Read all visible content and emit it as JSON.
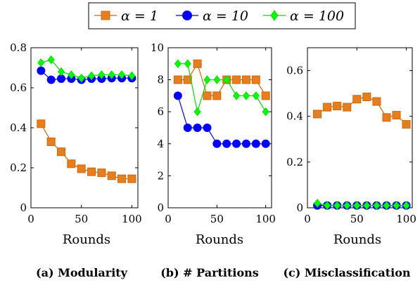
{
  "legend": {
    "entries": [
      {
        "label": "α = 1",
        "color": "#d2650d",
        "fill": "#e57f1e",
        "marker": "square"
      },
      {
        "label": "α = 10",
        "color": "#0000ff",
        "fill": "#0000ff",
        "marker": "circle"
      },
      {
        "label": "α = 100",
        "color": "#00e000",
        "fill": "#00ff00",
        "marker": "diamond"
      }
    ]
  },
  "chart_data": [
    {
      "type": "line",
      "caption": "(a) Modularity",
      "xlabel": "Rounds",
      "ylabel": "",
      "xlim": [
        0,
        106
      ],
      "ylim": [
        0,
        0.8
      ],
      "xticks": [
        0,
        50,
        100
      ],
      "yticks": [
        0,
        0.2,
        0.4,
        0.6,
        0.8
      ],
      "yticklabels": [
        "0",
        "0.2",
        "0.4",
        "0.6",
        "0.8"
      ],
      "x": [
        10,
        20,
        30,
        40,
        50,
        60,
        70,
        80,
        90,
        100
      ],
      "series": [
        {
          "name": "α = 1",
          "values": [
            0.42,
            0.33,
            0.28,
            0.22,
            0.195,
            0.18,
            0.175,
            0.16,
            0.145,
            0.145
          ]
        },
        {
          "name": "α = 10",
          "values": [
            0.685,
            0.64,
            0.645,
            0.645,
            0.64,
            0.645,
            0.645,
            0.648,
            0.648,
            0.648
          ]
        },
        {
          "name": "α = 100",
          "values": [
            0.725,
            0.74,
            0.68,
            0.665,
            0.648,
            0.66,
            0.665,
            0.665,
            0.665,
            0.66
          ]
        }
      ]
    },
    {
      "type": "line",
      "caption": "(b) # Partitions",
      "xlabel": "Rounds",
      "ylabel": "",
      "xlim": [
        0,
        106
      ],
      "ylim": [
        0,
        10
      ],
      "xticks": [
        0,
        50,
        100
      ],
      "yticks": [
        0,
        2,
        4,
        6,
        8,
        10
      ],
      "yticklabels": [
        "0",
        "2",
        "4",
        "6",
        "8",
        "10"
      ],
      "x": [
        10,
        20,
        30,
        40,
        50,
        60,
        70,
        80,
        90,
        100
      ],
      "series": [
        {
          "name": "α = 1",
          "values": [
            8,
            8,
            9,
            7,
            7,
            8,
            8,
            8,
            8,
            7
          ]
        },
        {
          "name": "α = 10",
          "values": [
            7,
            5,
            5,
            5,
            4,
            4,
            4,
            4,
            4,
            4
          ]
        },
        {
          "name": "α = 100",
          "values": [
            9,
            9,
            6,
            8,
            8,
            8,
            7,
            7,
            7,
            6
          ]
        }
      ]
    },
    {
      "type": "line",
      "caption": "(c) Misclassification",
      "xlabel": "Rounds",
      "ylabel": "",
      "xlim": [
        0,
        106
      ],
      "ylim": [
        0,
        0.7
      ],
      "xticks": [
        0,
        50,
        100
      ],
      "yticks": [
        0,
        0.2,
        0.4,
        0.6
      ],
      "yticklabels": [
        "0",
        "0.2",
        "0.4",
        "0.6"
      ],
      "x": [
        10,
        20,
        30,
        40,
        50,
        60,
        70,
        80,
        90,
        100
      ],
      "series": [
        {
          "name": "α = 1",
          "values": [
            0.41,
            0.44,
            0.445,
            0.44,
            0.475,
            0.485,
            0.465,
            0.395,
            0.405,
            0.365
          ]
        },
        {
          "name": "α = 10",
          "values": [
            0.01,
            0.01,
            0.01,
            0.01,
            0.01,
            0.01,
            0.01,
            0.01,
            0.01,
            0.01
          ]
        },
        {
          "name": "α = 100",
          "values": [
            0.02,
            0.01,
            0.01,
            0.01,
            0.01,
            0.01,
            0.01,
            0.01,
            0.01,
            0.01
          ]
        }
      ]
    }
  ]
}
